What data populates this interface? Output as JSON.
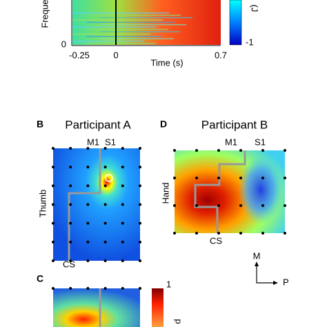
{
  "panel_top": {
    "y_label": "Freque",
    "y_tick": "0",
    "x_ticks": [
      "-0.25",
      "0",
      "0.7"
    ],
    "x_label": "Time (s)",
    "colorbar_tick": "-1",
    "colorbar_label": "(J"
  },
  "panel_b": {
    "letter": "B",
    "title": "Participant A",
    "m1": "M1",
    "s1": "S1",
    "side_label": "Thumb",
    "cs": "CS"
  },
  "panel_d": {
    "letter": "D",
    "title": "Participant B",
    "m1": "M1",
    "s1": "S1",
    "side_label": "Hand",
    "cs": "CS"
  },
  "orientation": {
    "medial": "M",
    "posterior": "P"
  },
  "panel_c": {
    "letter": "C",
    "colorbar_tick": "1",
    "colorbar_label": "p"
  }
}
